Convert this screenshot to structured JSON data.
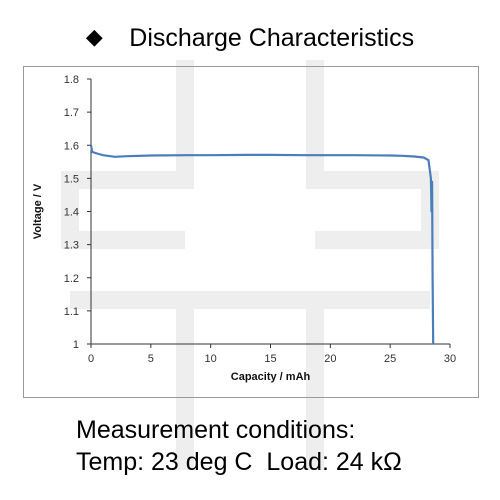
{
  "header": {
    "bullet": "◆",
    "title": "Discharge Characteristics"
  },
  "conditions": {
    "line1": "Measurement conditions:",
    "line2": "Temp: 23 deg C  Load: 24 kΩ"
  },
  "colors": {
    "series": "#4a7ebb",
    "watermark": "#eeeeee"
  },
  "chart_data": {
    "type": "line",
    "title": "",
    "xlabel": "Capacity  /  mAh",
    "ylabel": "Voltage  /  V",
    "xlim": [
      0,
      30
    ],
    "ylim": [
      1,
      1.8
    ],
    "xticks": [
      "0",
      "5",
      "10",
      "15",
      "20",
      "25",
      "30"
    ],
    "yticks": [
      "1",
      "1.1",
      "1.2",
      "1.3",
      "1.4",
      "1.5",
      "1.6",
      "1.7",
      "1.8"
    ],
    "grid": false,
    "legend": "none",
    "series": [
      {
        "x": [
          0,
          0.1,
          0.5,
          1,
          2,
          3,
          5,
          8,
          10,
          13,
          15,
          18,
          20,
          22,
          25,
          26,
          27,
          27.8,
          28.2,
          28.4,
          28.45,
          28.5,
          28.55,
          28.6
        ],
        "y": [
          1.6,
          1.58,
          1.575,
          1.57,
          1.565,
          1.567,
          1.569,
          1.57,
          1.57,
          1.571,
          1.571,
          1.57,
          1.57,
          1.57,
          1.569,
          1.568,
          1.566,
          1.563,
          1.555,
          1.5,
          1.4,
          1.49,
          1.2,
          1.0
        ]
      }
    ]
  }
}
